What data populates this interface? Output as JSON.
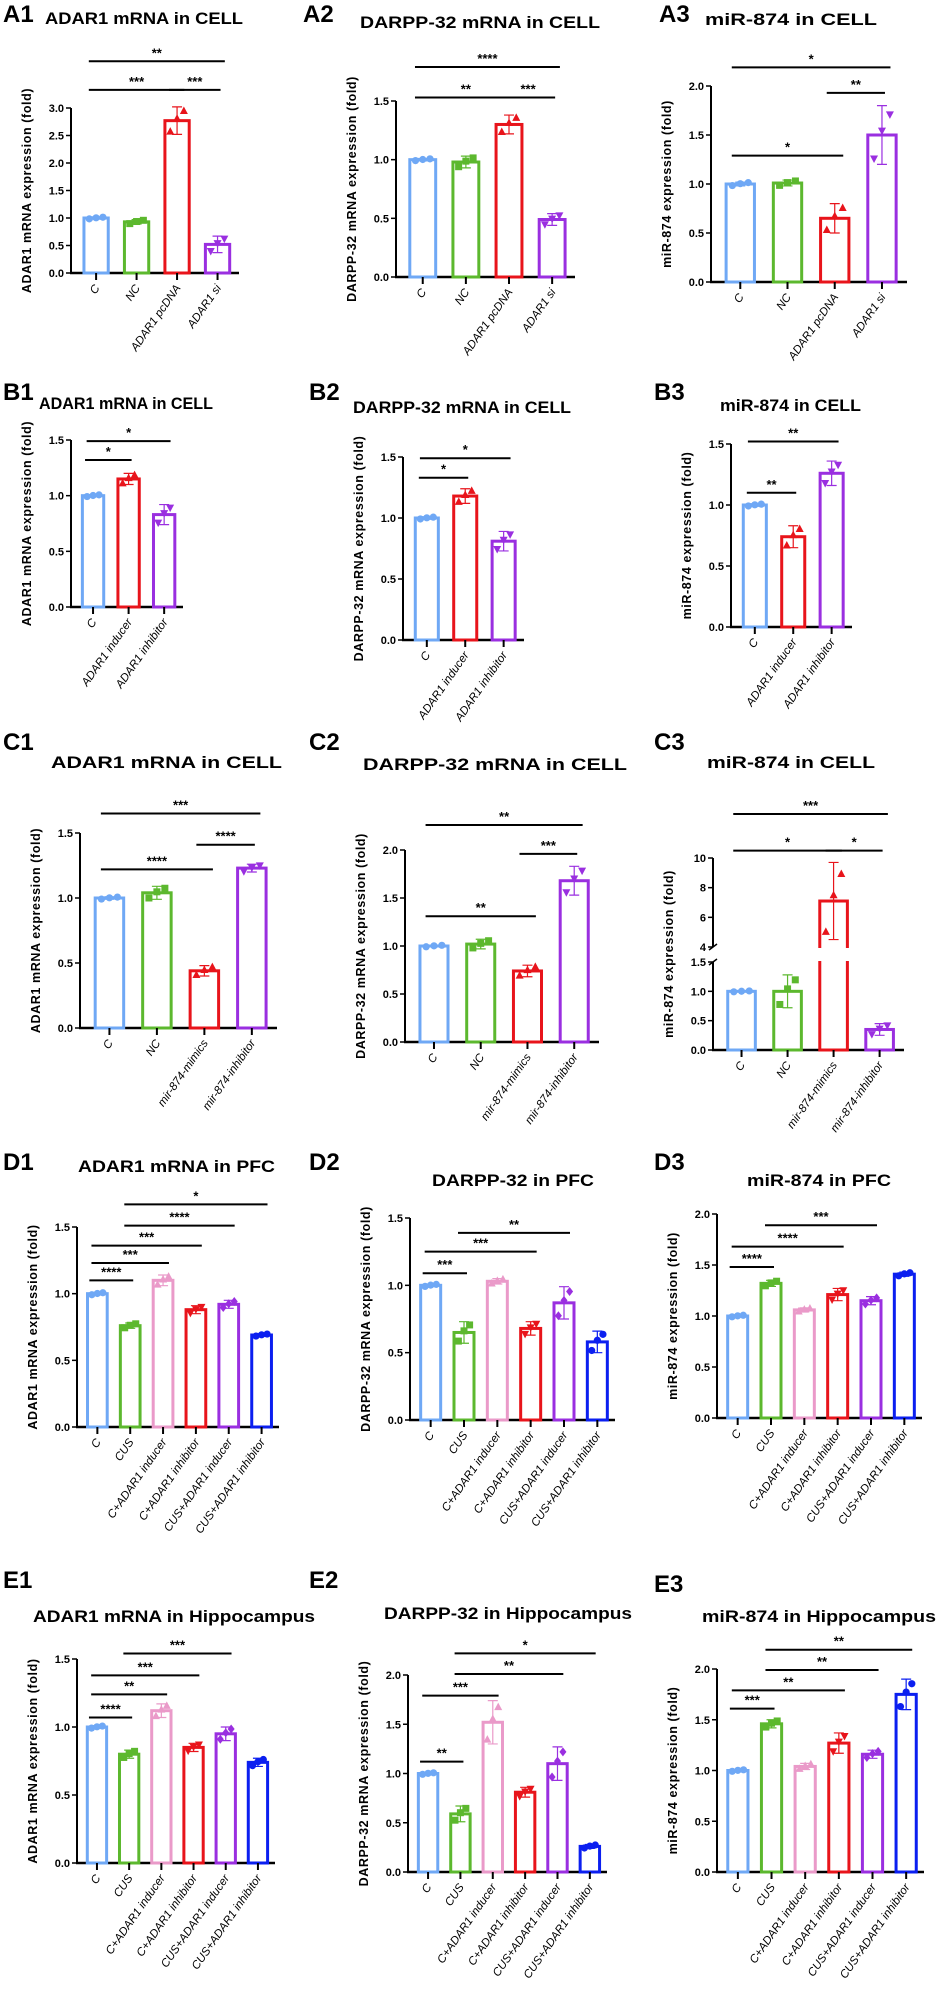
{
  "chart_data": [
    {
      "id": "A1",
      "type": "bar",
      "panel_label": "A1",
      "title": "ADAR1 mRNA in CELL",
      "ylabel": "ADAR1 mRNA expression (fold)",
      "ylim": [
        0,
        3
      ],
      "yticks": [
        0,
        0.5,
        1,
        1.5,
        2,
        2.5,
        3
      ],
      "categories": [
        "C",
        "NC",
        "ADAR1 pcDNA",
        "ADAR1 si"
      ],
      "values": [
        1.0,
        0.93,
        2.77,
        0.52
      ],
      "errors": [
        0.02,
        0.04,
        0.25,
        0.15
      ],
      "colors": [
        "#6fa8f5",
        "#5cb82e",
        "#e8141b",
        "#9a2fe0"
      ],
      "markers": [
        "circle",
        "square",
        "triangle-up",
        "triangle-down"
      ],
      "significance": [
        {
          "from": 0,
          "to": 2,
          "label": "***",
          "y": 3.33
        },
        {
          "from": 2,
          "to": 3,
          "label": "***",
          "y": 3.33
        },
        {
          "from": 0,
          "to": 3,
          "label": "**",
          "y": 3.85
        }
      ]
    },
    {
      "id": "A2",
      "type": "bar",
      "panel_label": "A2",
      "title": "DARPP-32 mRNA in CELL",
      "ylabel": "DARPP-32 mRNA expression (fold)",
      "ylim": [
        0,
        1.5
      ],
      "yticks": [
        0,
        0.5,
        1,
        1.5
      ],
      "categories": [
        "C",
        "NC",
        "ADAR1 pcDNA",
        "ADAR1 si"
      ],
      "values": [
        1.0,
        0.98,
        1.3,
        0.49
      ],
      "errors": [
        0.01,
        0.05,
        0.08,
        0.05
      ],
      "colors": [
        "#6fa8f5",
        "#5cb82e",
        "#e8141b",
        "#9a2fe0"
      ],
      "markers": [
        "circle",
        "square",
        "triangle-up",
        "triangle-down"
      ],
      "significance": [
        {
          "from": 0,
          "to": 2,
          "label": "**",
          "y": 1.53
        },
        {
          "from": 2,
          "to": 3,
          "label": "***",
          "y": 1.53
        },
        {
          "from": 0,
          "to": 3,
          "label": "****",
          "y": 1.79
        }
      ]
    },
    {
      "id": "A3",
      "type": "bar",
      "panel_label": "A3",
      "title": "miR-874 in CELL",
      "ylabel": "miR-874 expression (fold)",
      "ylim": [
        0,
        2
      ],
      "yticks": [
        0,
        0.5,
        1,
        1.5,
        2
      ],
      "categories": [
        "C",
        "NC",
        "ADAR1 pcDNA",
        "ADAR1 si"
      ],
      "values": [
        1.0,
        1.01,
        0.65,
        1.5
      ],
      "errors": [
        0.02,
        0.03,
        0.15,
        0.3
      ],
      "colors": [
        "#6fa8f5",
        "#5cb82e",
        "#e8141b",
        "#9a2fe0"
      ],
      "markers": [
        "circle",
        "square",
        "triangle-up",
        "triangle-down"
      ],
      "significance": [
        {
          "from": 0,
          "to": 2,
          "label": "*",
          "y": 1.29
        },
        {
          "from": 2,
          "to": 3,
          "label": "**",
          "y": 1.93
        },
        {
          "from": 0,
          "to": 3,
          "label": "*",
          "y": 2.19
        }
      ]
    },
    {
      "id": "B1",
      "type": "bar",
      "panel_label": "B1",
      "title": "ADAR1 mRNA in CELL",
      "ylabel": "ADAR1 mRNA expression (fold)",
      "ylim": [
        0,
        1.5
      ],
      "yticks": [
        0,
        0.5,
        1,
        1.5
      ],
      "categories": [
        "C",
        "ADAR1 inducer",
        "ADAR1 inhibitor"
      ],
      "values": [
        1.0,
        1.15,
        0.83
      ],
      "errors": [
        0.01,
        0.05,
        0.09
      ],
      "colors": [
        "#6fa8f5",
        "#e8141b",
        "#9a2fe0"
      ],
      "markers": [
        "circle",
        "triangle-up",
        "triangle-down"
      ],
      "significance": [
        {
          "from": 0,
          "to": 1,
          "label": "*",
          "y": 1.32
        },
        {
          "from": 0,
          "to": 2,
          "label": "*",
          "y": 1.49
        }
      ]
    },
    {
      "id": "B2",
      "type": "bar",
      "panel_label": "B2",
      "title": "DARPP-32 mRNA in CELL",
      "ylabel": "DARPP-32 mRNA expression (fold)",
      "ylim": [
        0,
        1.5
      ],
      "yticks": [
        0,
        0.5,
        1,
        1.5
      ],
      "categories": [
        "C",
        "ADAR1 inducer",
        "ADAR1 inhibitor"
      ],
      "values": [
        1.0,
        1.18,
        0.81
      ],
      "errors": [
        0.01,
        0.06,
        0.08
      ],
      "colors": [
        "#6fa8f5",
        "#e8141b",
        "#9a2fe0"
      ],
      "markers": [
        "circle",
        "triangle-up",
        "triangle-down"
      ],
      "significance": [
        {
          "from": 0,
          "to": 1,
          "label": "*",
          "y": 1.33
        },
        {
          "from": 0,
          "to": 2,
          "label": "*",
          "y": 1.49
        }
      ]
    },
    {
      "id": "B3",
      "type": "bar",
      "panel_label": "B3",
      "title": "miR-874 in CELL",
      "ylabel": "miR-874 expression (fold)",
      "ylim": [
        0,
        1.5
      ],
      "yticks": [
        0,
        0.5,
        1,
        1.5
      ],
      "categories": [
        "C",
        "ADAR1 inducer",
        "ADAR1 inhibitor"
      ],
      "values": [
        1.0,
        0.74,
        1.26
      ],
      "errors": [
        0.01,
        0.09,
        0.1
      ],
      "colors": [
        "#6fa8f5",
        "#e8141b",
        "#9a2fe0"
      ],
      "markers": [
        "circle",
        "triangle-up",
        "triangle-down"
      ],
      "significance": [
        {
          "from": 0,
          "to": 1,
          "label": "**",
          "y": 1.1
        },
        {
          "from": 0,
          "to": 2,
          "label": "**",
          "y": 1.52
        }
      ]
    },
    {
      "id": "C1",
      "type": "bar",
      "panel_label": "C1",
      "title": "ADAR1 mRNA in CELL",
      "ylabel": "ADAR1 mRNA expression (fold)",
      "ylim": [
        0,
        1.5
      ],
      "yticks": [
        0,
        0.5,
        1,
        1.5
      ],
      "categories": [
        "C",
        "NC",
        "mir-874-mimics",
        "mir-874-inhibitor"
      ],
      "values": [
        1.0,
        1.04,
        0.44,
        1.23
      ],
      "errors": [
        0.01,
        0.05,
        0.04,
        0.03
      ],
      "colors": [
        "#6fa8f5",
        "#5cb82e",
        "#e8141b",
        "#9a2fe0"
      ],
      "markers": [
        "circle",
        "square",
        "triangle-up",
        "triangle-down"
      ],
      "significance": [
        {
          "from": 0,
          "to": 2,
          "label": "****",
          "y": 1.22
        },
        {
          "from": 2,
          "to": 3,
          "label": "****",
          "y": 1.41
        },
        {
          "from": 0,
          "to": 3,
          "label": "***",
          "y": 1.65
        }
      ]
    },
    {
      "id": "C2",
      "type": "bar",
      "panel_label": "C2",
      "title": "DARPP-32 mRNA in CELL",
      "ylabel": "DARPP-32 mRNA expression (fold)",
      "ylim": [
        0,
        2
      ],
      "yticks": [
        0,
        0.5,
        1,
        1.5,
        2
      ],
      "categories": [
        "C",
        "NC",
        "mir-874-mimics",
        "mir-874-inhibitor"
      ],
      "values": [
        1.0,
        1.02,
        0.74,
        1.68
      ],
      "errors": [
        0.01,
        0.05,
        0.06,
        0.15
      ],
      "colors": [
        "#6fa8f5",
        "#5cb82e",
        "#e8141b",
        "#9a2fe0"
      ],
      "markers": [
        "circle",
        "square",
        "triangle-up",
        "triangle-down"
      ],
      "significance": [
        {
          "from": 0,
          "to": 2,
          "label": "**",
          "y": 1.31
        },
        {
          "from": 2,
          "to": 3,
          "label": "***",
          "y": 1.96
        },
        {
          "from": 0,
          "to": 3,
          "label": "**",
          "y": 2.26
        }
      ]
    },
    {
      "id": "C3",
      "type": "bar",
      "panel_label": "C3",
      "title": "miR-874 in CELL",
      "ylabel": "miR-874 expression (fold)",
      "ylim_segments": [
        [
          0,
          1.5
        ],
        [
          4,
          10
        ]
      ],
      "yticks": [
        0,
        0.5,
        1,
        1.5
      ],
      "yticks_upper": [
        4,
        6,
        8,
        10
      ],
      "categories": [
        "C",
        "NC",
        "mir-874-mimics",
        "mir-874-inhibitor"
      ],
      "values": [
        1.0,
        1.0,
        7.1,
        0.35
      ],
      "errors": [
        0.01,
        0.28,
        2.6,
        0.1
      ],
      "colors": [
        "#6fa8f5",
        "#5cb82e",
        "#e8141b",
        "#9a2fe0"
      ],
      "markers": [
        "circle",
        "square",
        "triangle-up",
        "triangle-down"
      ],
      "significance": [
        {
          "from": 0,
          "to": 2,
          "label": "*",
          "y": 10.5
        },
        {
          "from": 2,
          "to": 3,
          "label": "*",
          "y": 10.5
        },
        {
          "from": 0,
          "to": 3,
          "label": "***",
          "y": 12.97
        }
      ]
    },
    {
      "id": "D1",
      "type": "bar",
      "panel_label": "D1",
      "title": "ADAR1 mRNA in PFC",
      "ylabel": "ADAR1 mRNA expression (fold)",
      "ylim": [
        0,
        1.5
      ],
      "yticks": [
        0,
        0.5,
        1,
        1.5
      ],
      "categories": [
        "C",
        "CUS",
        "C+ADAR1 inducer",
        "C+ADAR1 inhibitor",
        "CUS+ADAR1 inducer",
        "CUS+ADAR1 inhibitor"
      ],
      "values": [
        1.0,
        0.76,
        1.1,
        0.88,
        0.92,
        0.69
      ],
      "errors": [
        0.01,
        0.02,
        0.04,
        0.03,
        0.03,
        0.01
      ],
      "colors": [
        "#6fa8f5",
        "#5cb82e",
        "#ea9ac9",
        "#e8141b",
        "#9a2fe0",
        "#0b1ff0"
      ],
      "markers": [
        "circle",
        "square",
        "triangle-up",
        "triangle-down",
        "diamond",
        "circle"
      ],
      "significance": [
        {
          "from": 0,
          "to": 1,
          "label": "****",
          "y": 1.1
        },
        {
          "from": 0,
          "to": 2,
          "label": "***",
          "y": 1.23
        },
        {
          "from": 0,
          "to": 3,
          "label": "***",
          "y": 1.36
        },
        {
          "from": 1,
          "to": 4,
          "label": "****",
          "y": 1.51
        },
        {
          "from": 1,
          "to": 5,
          "label": "*",
          "y": 1.67
        }
      ]
    },
    {
      "id": "D2",
      "type": "bar",
      "panel_label": "D2",
      "title": "DARPP-32 in PFC",
      "ylabel": "DARPP-32 mRNA expression (fold)",
      "ylim": [
        0,
        1.5
      ],
      "yticks": [
        0,
        0.5,
        1,
        1.5
      ],
      "categories": [
        "C",
        "CUS",
        "C+ADAR1 inducer",
        "C+ADAR1 inhibitor",
        "CUS+ADAR1 inducer",
        "CUS+ADAR1 inhibitor"
      ],
      "values": [
        1.0,
        0.65,
        1.03,
        0.68,
        0.87,
        0.58
      ],
      "errors": [
        0.01,
        0.08,
        0.02,
        0.05,
        0.12,
        0.08
      ],
      "colors": [
        "#6fa8f5",
        "#5cb82e",
        "#ea9ac9",
        "#e8141b",
        "#9a2fe0",
        "#0b1ff0"
      ],
      "markers": [
        "circle",
        "square",
        "triangle-up",
        "triangle-down",
        "diamond",
        "circle"
      ],
      "significance": [
        {
          "from": 0,
          "to": 1,
          "label": "***",
          "y": 1.09
        },
        {
          "from": 0,
          "to": 3,
          "label": "***",
          "y": 1.25
        },
        {
          "from": 1,
          "to": 4,
          "label": "**",
          "y": 1.39
        }
      ]
    },
    {
      "id": "D3",
      "type": "bar",
      "panel_label": "D3",
      "title": "miR-874 in PFC",
      "ylabel": "miR-874 expression (fold)",
      "ylim": [
        0,
        2
      ],
      "yticks": [
        0,
        0.5,
        1,
        1.5,
        2
      ],
      "categories": [
        "C",
        "CUS",
        "C+ADAR1 inducer",
        "C+ADAR1 inhibitor",
        "CUS+ADAR1 inducer",
        "CUS+ADAR1 inhibitor"
      ],
      "values": [
        1.0,
        1.32,
        1.06,
        1.21,
        1.15,
        1.41
      ],
      "errors": [
        0.01,
        0.03,
        0.02,
        0.06,
        0.04,
        0.02
      ],
      "colors": [
        "#6fa8f5",
        "#5cb82e",
        "#ea9ac9",
        "#e8141b",
        "#9a2fe0",
        "#0b1ff0"
      ],
      "markers": [
        "circle",
        "square",
        "triangle-up",
        "triangle-down",
        "diamond",
        "circle"
      ],
      "significance": [
        {
          "from": 0,
          "to": 1,
          "label": "****",
          "y": 1.48
        },
        {
          "from": 0,
          "to": 3,
          "label": "****",
          "y": 1.68
        },
        {
          "from": 1,
          "to": 4,
          "label": "***",
          "y": 1.89
        }
      ]
    },
    {
      "id": "E1",
      "type": "bar",
      "panel_label": "E1",
      "title": "ADAR1 mRNA in Hippocampus",
      "ylabel": "ADAR1 mRNA expression (fold)",
      "ylim": [
        0,
        1.5
      ],
      "yticks": [
        0,
        0.5,
        1,
        1.5
      ],
      "categories": [
        "C",
        "CUS",
        "C+ADAR1 inducer",
        "C+ADAR1 inhibitor",
        "CUS+ADAR1 inducer",
        "CUS+ADAR1 inhibitor"
      ],
      "values": [
        1.0,
        0.8,
        1.12,
        0.85,
        0.95,
        0.74
      ],
      "errors": [
        0.01,
        0.03,
        0.05,
        0.03,
        0.05,
        0.03
      ],
      "colors": [
        "#6fa8f5",
        "#5cb82e",
        "#ea9ac9",
        "#e8141b",
        "#9a2fe0",
        "#0b1ff0"
      ],
      "markers": [
        "circle",
        "square",
        "triangle-up",
        "triangle-down",
        "diamond",
        "circle"
      ],
      "significance": [
        {
          "from": 0,
          "to": 1,
          "label": "****",
          "y": 1.07
        },
        {
          "from": 0,
          "to": 2,
          "label": "**",
          "y": 1.24
        },
        {
          "from": 0,
          "to": 3,
          "label": "***",
          "y": 1.38
        },
        {
          "from": 1,
          "to": 4,
          "label": "***",
          "y": 1.54
        }
      ]
    },
    {
      "id": "E2",
      "type": "bar",
      "panel_label": "E2",
      "title": "DARPP-32 in Hippocampus",
      "ylabel": "DARPP-32 mRNA expression (fold)",
      "ylim": [
        0,
        2
      ],
      "yticks": [
        0,
        0.5,
        1,
        1.5,
        2
      ],
      "categories": [
        "C",
        "CUS",
        "C+ADAR1 inducer",
        "C+ADAR1 inhibitor",
        "CUS+ADAR1 inducer",
        "CUS+ADAR1 inhibitor"
      ],
      "values": [
        1.0,
        0.59,
        1.52,
        0.81,
        1.1,
        0.26
      ],
      "errors": [
        0.01,
        0.08,
        0.22,
        0.05,
        0.17,
        0.02
      ],
      "colors": [
        "#6fa8f5",
        "#5cb82e",
        "#ea9ac9",
        "#e8141b",
        "#9a2fe0",
        "#0b1ff0"
      ],
      "markers": [
        "circle",
        "square",
        "triangle-up",
        "triangle-down",
        "diamond",
        "circle"
      ],
      "significance": [
        {
          "from": 0,
          "to": 1,
          "label": "**",
          "y": 1.12
        },
        {
          "from": 0,
          "to": 2,
          "label": "***",
          "y": 1.79
        },
        {
          "from": 1,
          "to": 4,
          "label": "**",
          "y": 2.01
        },
        {
          "from": 1,
          "to": 5,
          "label": "*",
          "y": 2.22
        }
      ]
    },
    {
      "id": "E3",
      "type": "bar",
      "panel_label": "E3",
      "title": "miR-874 in Hippocampus",
      "ylabel": "miR-874 expression (fold)",
      "ylim": [
        0,
        2
      ],
      "yticks": [
        0,
        0.5,
        1,
        1.5,
        2
      ],
      "categories": [
        "C",
        "CUS",
        "C+ADAR1 inducer",
        "C+ADAR1 inhibitor",
        "CUS+ADAR1 inducer",
        "CUS+ADAR1 inhibitor"
      ],
      "values": [
        1.0,
        1.46,
        1.04,
        1.27,
        1.16,
        1.75
      ],
      "errors": [
        0.01,
        0.04,
        0.03,
        0.1,
        0.04,
        0.15
      ],
      "colors": [
        "#6fa8f5",
        "#5cb82e",
        "#ea9ac9",
        "#e8141b",
        "#9a2fe0",
        "#0b1ff0"
      ],
      "markers": [
        "circle",
        "square",
        "triangle-up",
        "triangle-down",
        "diamond",
        "circle"
      ],
      "significance": [
        {
          "from": 0,
          "to": 1,
          "label": "***",
          "y": 1.61
        },
        {
          "from": 0,
          "to": 3,
          "label": "**",
          "y": 1.79
        },
        {
          "from": 1,
          "to": 4,
          "label": "**",
          "y": 1.99
        },
        {
          "from": 1,
          "to": 5,
          "label": "**",
          "y": 2.19
        }
      ]
    }
  ]
}
